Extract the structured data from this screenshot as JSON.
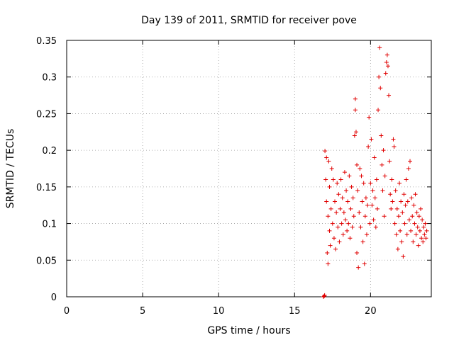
{
  "chart_data": {
    "type": "scatter",
    "title": "Day 139 of 2011, SRMTID for receiver pove",
    "xlabel": "GPS time / hours",
    "ylabel": "SRMTID / TECUs",
    "xlim": [
      0,
      24
    ],
    "ylim": [
      0,
      0.35
    ],
    "x_ticks": [
      0,
      5,
      10,
      15,
      20
    ],
    "x_tick_labels": [
      "0",
      "5",
      "10",
      "15",
      "20"
    ],
    "y_ticks": [
      0,
      0.05,
      0.1,
      0.15,
      0.2,
      0.25,
      0.3,
      0.35
    ],
    "y_tick_labels": [
      "0",
      "0.05",
      "0.1",
      "0.15",
      "0.2",
      "0.25",
      "0.3",
      "0.35"
    ],
    "grid": true,
    "legend": "none",
    "marker": "plus",
    "series": [
      {
        "name": "SRMTID",
        "color": "#e00000",
        "points": [
          [
            16.9,
            0.0
          ],
          [
            16.95,
            0.001
          ],
          [
            16.98,
            0.002
          ],
          [
            17.0,
            0.199
          ],
          [
            17.05,
            0.16
          ],
          [
            17.1,
            0.13
          ],
          [
            17.1,
            0.19
          ],
          [
            17.15,
            0.06
          ],
          [
            17.2,
            0.045
          ],
          [
            17.2,
            0.11
          ],
          [
            17.25,
            0.185
          ],
          [
            17.3,
            0.09
          ],
          [
            17.3,
            0.15
          ],
          [
            17.35,
            0.07
          ],
          [
            17.4,
            0.12
          ],
          [
            17.45,
            0.175
          ],
          [
            17.5,
            0.1
          ],
          [
            17.55,
            0.16
          ],
          [
            17.6,
            0.08
          ],
          [
            17.65,
            0.13
          ],
          [
            17.7,
            0.065
          ],
          [
            17.75,
            0.115
          ],
          [
            17.8,
            0.155
          ],
          [
            17.85,
            0.095
          ],
          [
            17.9,
            0.14
          ],
          [
            17.95,
            0.075
          ],
          [
            18.0,
            0.12
          ],
          [
            18.05,
            0.16
          ],
          [
            18.1,
            0.1
          ],
          [
            18.15,
            0.135
          ],
          [
            18.2,
            0.085
          ],
          [
            18.25,
            0.115
          ],
          [
            18.3,
            0.17
          ],
          [
            18.35,
            0.105
          ],
          [
            18.4,
            0.145
          ],
          [
            18.45,
            0.09
          ],
          [
            18.5,
            0.13
          ],
          [
            18.55,
            0.1
          ],
          [
            18.6,
            0.165
          ],
          [
            18.65,
            0.08
          ],
          [
            18.7,
            0.12
          ],
          [
            18.75,
            0.15
          ],
          [
            18.8,
            0.095
          ],
          [
            18.85,
            0.135
          ],
          [
            18.9,
            0.11
          ],
          [
            18.95,
            0.22
          ],
          [
            19.0,
            0.27
          ],
          [
            19.0,
            0.255
          ],
          [
            19.05,
            0.225
          ],
          [
            19.1,
            0.18
          ],
          [
            19.1,
            0.06
          ],
          [
            19.15,
            0.145
          ],
          [
            19.2,
            0.04
          ],
          [
            19.25,
            0.115
          ],
          [
            19.3,
            0.175
          ],
          [
            19.35,
            0.095
          ],
          [
            19.4,
            0.165
          ],
          [
            19.45,
            0.13
          ],
          [
            19.5,
            0.075
          ],
          [
            19.55,
            0.155
          ],
          [
            19.6,
            0.045
          ],
          [
            19.65,
            0.11
          ],
          [
            19.7,
            0.135
          ],
          [
            19.75,
            0.085
          ],
          [
            19.8,
            0.125
          ],
          [
            19.85,
            0.205
          ],
          [
            19.9,
            0.245
          ],
          [
            19.95,
            0.1
          ],
          [
            20.0,
            0.155
          ],
          [
            20.05,
            0.215
          ],
          [
            20.1,
            0.125
          ],
          [
            20.15,
            0.145
          ],
          [
            20.2,
            0.105
          ],
          [
            20.25,
            0.19
          ],
          [
            20.3,
            0.135
          ],
          [
            20.35,
            0.095
          ],
          [
            20.4,
            0.16
          ],
          [
            20.45,
            0.12
          ],
          [
            20.5,
            0.255
          ],
          [
            20.55,
            0.3
          ],
          [
            20.6,
            0.34
          ],
          [
            20.65,
            0.285
          ],
          [
            20.7,
            0.22
          ],
          [
            20.75,
            0.18
          ],
          [
            20.8,
            0.145
          ],
          [
            20.85,
            0.2
          ],
          [
            20.9,
            0.11
          ],
          [
            20.95,
            0.165
          ],
          [
            21.0,
            0.305
          ],
          [
            21.05,
            0.32
          ],
          [
            21.1,
            0.33
          ],
          [
            21.15,
            0.315
          ],
          [
            21.2,
            0.275
          ],
          [
            21.25,
            0.185
          ],
          [
            21.3,
            0.14
          ],
          [
            21.35,
            0.12
          ],
          [
            21.4,
            0.16
          ],
          [
            21.45,
            0.13
          ],
          [
            21.5,
            0.215
          ],
          [
            21.55,
            0.205
          ],
          [
            21.6,
            0.1
          ],
          [
            21.65,
            0.145
          ],
          [
            21.7,
            0.085
          ],
          [
            21.75,
            0.12
          ],
          [
            21.8,
            0.065
          ],
          [
            21.85,
            0.11
          ],
          [
            21.9,
            0.155
          ],
          [
            21.95,
            0.09
          ],
          [
            22.0,
            0.13
          ],
          [
            22.05,
            0.075
          ],
          [
            22.1,
            0.115
          ],
          [
            22.15,
            0.055
          ],
          [
            22.2,
            0.14
          ],
          [
            22.25,
            0.1
          ],
          [
            22.3,
            0.125
          ],
          [
            22.35,
            0.16
          ],
          [
            22.4,
            0.085
          ],
          [
            22.45,
            0.13
          ],
          [
            22.5,
            0.175
          ],
          [
            22.55,
            0.105
          ],
          [
            22.6,
            0.185
          ],
          [
            22.65,
            0.09
          ],
          [
            22.7,
            0.135
          ],
          [
            22.75,
            0.11
          ],
          [
            22.8,
            0.075
          ],
          [
            22.85,
            0.125
          ],
          [
            22.9,
            0.1
          ],
          [
            22.95,
            0.14
          ],
          [
            23.0,
            0.085
          ],
          [
            23.05,
            0.115
          ],
          [
            23.1,
            0.095
          ],
          [
            23.15,
            0.07
          ],
          [
            23.2,
            0.11
          ],
          [
            23.25,
            0.09
          ],
          [
            23.3,
            0.12
          ],
          [
            23.35,
            0.08
          ],
          [
            23.4,
            0.105
          ],
          [
            23.45,
            0.075
          ],
          [
            23.5,
            0.095
          ],
          [
            23.55,
            0.085
          ],
          [
            23.6,
            0.1
          ],
          [
            23.65,
            0.08
          ],
          [
            23.7,
            0.09
          ]
        ]
      }
    ]
  }
}
